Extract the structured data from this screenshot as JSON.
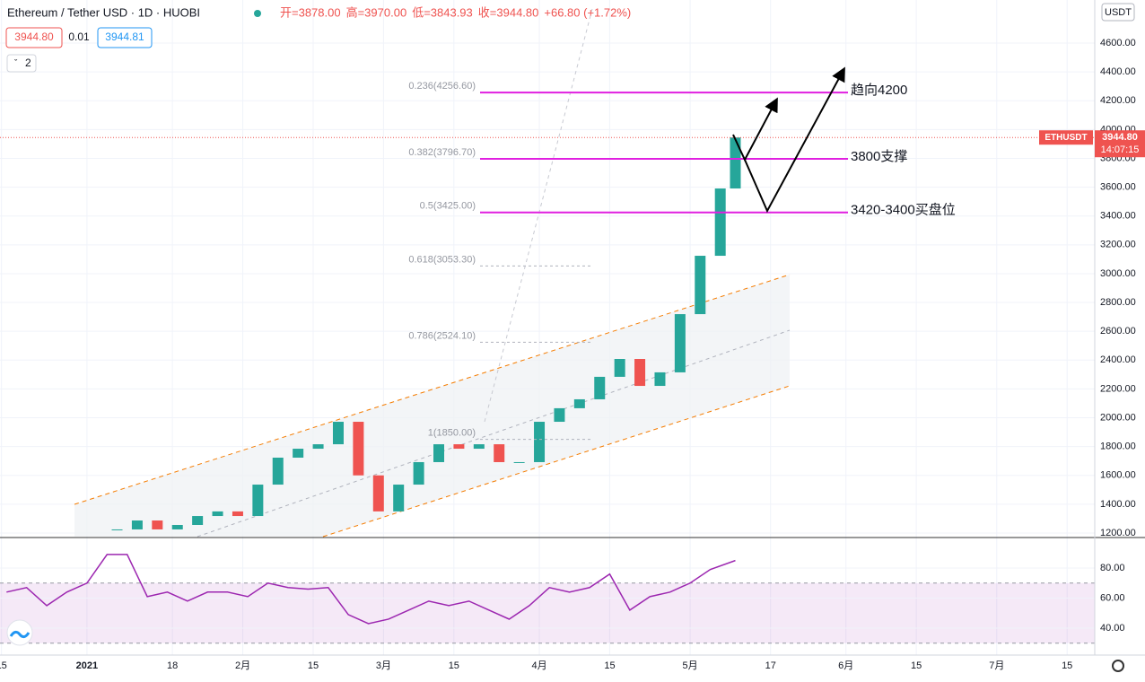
{
  "header": {
    "symbol": "Ethereum / Tether USD · 1D · HUOBI",
    "ohlc": [
      "开=3878.00",
      "高=3970.00",
      "低=3843.93",
      "收=3944.80",
      "+66.80 (+1.72%)"
    ],
    "bid": "3944.80",
    "spread": "0.01",
    "ask": "3944.81",
    "indicators": "2",
    "currency": "USDT"
  },
  "chart_data": [
    {
      "type": "candlestick",
      "x": [
        6,
        10,
        14,
        18,
        22,
        26,
        30,
        34,
        38,
        42,
        46,
        50,
        54,
        58,
        62,
        66,
        70,
        74,
        78,
        82,
        86,
        90,
        94,
        98,
        102,
        106,
        110,
        114,
        118,
        122,
        126,
        129
      ],
      "series": [
        {
          "name": "ETHUSDT",
          "values": [
            1225,
            1287,
            1225,
            1256,
            1318,
            1350,
            1318,
            1536,
            1723,
            1785,
            1816,
            1972,
            1600,
            1350,
            1536,
            1692,
            1816,
            1785,
            1816,
            1692,
            1692,
            1972,
            2066,
            2128,
            2284,
            2408,
            2221,
            2315,
            2719,
            3124,
            3591,
            3944.8
          ]
        }
      ],
      "up_color": "#26a69a",
      "down_color": "#ef5350",
      "price_tag": {
        "value_label": "3944.80",
        "countdown": "14:07:15"
      },
      "xlim": [
        -17.3,
        200.5
      ],
      "ylim": [
        1175,
        4899
      ],
      "xticks": [
        {
          "value": -17,
          "label": "15"
        },
        {
          "value": 0,
          "label": "2021"
        },
        {
          "value": 17,
          "label": "18"
        },
        {
          "value": 31,
          "label": "2月"
        },
        {
          "value": 45,
          "label": "15"
        },
        {
          "value": 59,
          "label": "3月"
        },
        {
          "value": 73,
          "label": "15"
        },
        {
          "value": 90,
          "label": "4月"
        },
        {
          "value": 104,
          "label": "15"
        },
        {
          "value": 120,
          "label": "5月"
        },
        {
          "value": 136,
          "label": "17"
        },
        {
          "value": 151,
          "label": "6月"
        },
        {
          "value": 165,
          "label": "15"
        },
        {
          "value": 181,
          "label": "7月"
        },
        {
          "value": 195,
          "label": "15"
        }
      ],
      "yticks": [
        {
          "value": 1200,
          "label": "1200.00"
        },
        {
          "value": 1400,
          "label": "1400.00"
        },
        {
          "value": 1600,
          "label": "1600.00"
        },
        {
          "value": 1800,
          "label": "1800.00"
        },
        {
          "value": 2000,
          "label": "2000.00"
        },
        {
          "value": 2200,
          "label": "2200.00"
        },
        {
          "value": 2400,
          "label": "2400.00"
        },
        {
          "value": 2600,
          "label": "2600.00"
        },
        {
          "value": 2800,
          "label": "2800.00"
        },
        {
          "value": 3000,
          "label": "3000.00"
        },
        {
          "value": 3200,
          "label": "3200.00"
        },
        {
          "value": 3400,
          "label": "3400.00"
        },
        {
          "value": 3600,
          "label": "3600.00"
        },
        {
          "value": 3800,
          "label": "3800.00"
        },
        {
          "value": 4000,
          "label": "4000.00"
        },
        {
          "value": 4200,
          "label": "4200.00"
        },
        {
          "value": 4400,
          "label": "4400.00"
        },
        {
          "value": 4600,
          "label": "4600.00"
        }
      ],
      "fib_levels": [
        {
          "label": "0.236(4256.60)",
          "value": 4256.6,
          "color": "#e020e0"
        },
        {
          "label": "0.382(3796.70)",
          "value": 3796.7,
          "color": "#e020e0"
        },
        {
          "label": "0.5(3425.00)",
          "value": 3425,
          "color": "#e020e0"
        },
        {
          "label": "0.618(3053.30)",
          "value": 3053.3,
          "color": "#b0b3bd"
        },
        {
          "label": "0.786(2524.10)",
          "value": 2524.1,
          "color": "#b0b3bd"
        },
        {
          "label": "1(1850.00)",
          "value": 1850,
          "color": "#b0b3bd"
        }
      ],
      "annotations": [
        "趋向4200",
        "3800支撑",
        "3420-3400买盘位"
      ]
    },
    {
      "type": "line",
      "x": [
        -16,
        -12,
        -8,
        -4,
        0,
        4,
        8,
        12,
        16,
        20,
        24,
        28,
        32,
        36,
        40,
        44,
        48,
        52,
        56,
        60,
        64,
        68,
        72,
        76,
        80,
        84,
        88,
        92,
        96,
        100,
        104,
        108,
        112,
        116,
        120,
        124,
        129
      ],
      "values": [
        64,
        67,
        55,
        64,
        70,
        89,
        89,
        61,
        64,
        58,
        64,
        64,
        61,
        70,
        67,
        66,
        67,
        49,
        43,
        46,
        52,
        58,
        55,
        58,
        52,
        46,
        55,
        67,
        64,
        67,
        76,
        52,
        61,
        64,
        70,
        79,
        85
      ],
      "color": "#9c27b0",
      "band": [
        30,
        70
      ],
      "ylim": [
        22.1,
        99.7
      ],
      "yticks": [
        {
          "value": 40,
          "label": "40.00"
        },
        {
          "value": 60,
          "label": "60.00"
        },
        {
          "value": 80,
          "label": "80.00"
        }
      ]
    }
  ]
}
